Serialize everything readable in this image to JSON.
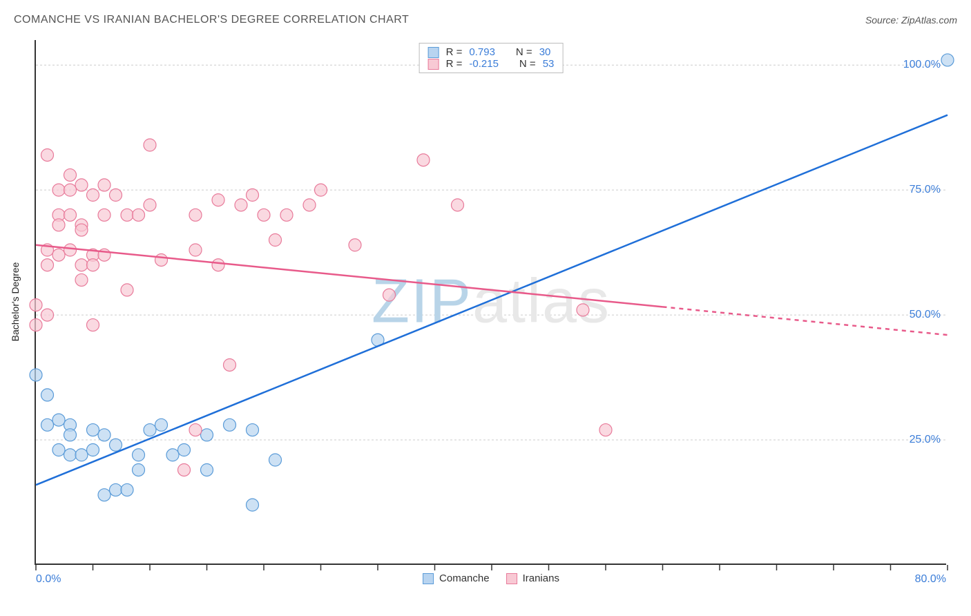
{
  "header": {
    "title": "COMANCHE VS IRANIAN BACHELOR'S DEGREE CORRELATION CHART",
    "source": "Source: ZipAtlas.com"
  },
  "watermark": {
    "text": "ZIPatlas",
    "color_strong": "#b8d4e8",
    "color_light": "#e8e8e8"
  },
  "chart": {
    "type": "scatter",
    "background_color": "#ffffff",
    "grid_color": "#cccccc",
    "axis_color": "#333333",
    "y_axis_label": "Bachelor's Degree",
    "xlim": [
      0,
      80
    ],
    "ylim": [
      0,
      105
    ],
    "x_tick_positions": [
      0,
      5,
      10,
      15,
      20,
      25,
      30,
      35,
      40,
      45,
      50,
      55,
      60,
      65,
      70,
      75,
      80
    ],
    "x_range_labels": [
      {
        "value": 0,
        "text": "0.0%"
      },
      {
        "value": 80,
        "text": "80.0%"
      }
    ],
    "y_ticks": [
      {
        "value": 25,
        "label": "25.0%"
      },
      {
        "value": 50,
        "label": "50.0%"
      },
      {
        "value": 75,
        "label": "75.0%"
      },
      {
        "value": 100,
        "label": "100.0%"
      }
    ],
    "y_tick_label_color": "#3b7dd8",
    "x_range_label_color": "#3b7dd8",
    "marker_radius": 9,
    "marker_stroke_width": 1.2,
    "trendline_width": 2.5,
    "series": [
      {
        "name": "Comanche",
        "fill_color": "#b8d4f0",
        "stroke_color": "#5a9bd8",
        "line_color": "#1f6fd8",
        "r_value": "0.793",
        "n_value": "30",
        "trend": {
          "x1": 0,
          "y1": 16,
          "x2": 80,
          "y2": 90,
          "extrapolate_from_x": null
        },
        "points": [
          [
            0,
            38
          ],
          [
            1,
            34
          ],
          [
            1,
            28
          ],
          [
            2,
            29
          ],
          [
            3,
            28
          ],
          [
            2,
            23
          ],
          [
            3,
            22
          ],
          [
            4,
            22
          ],
          [
            3,
            26
          ],
          [
            5,
            27
          ],
          [
            5,
            23
          ],
          [
            6,
            26
          ],
          [
            7,
            24
          ],
          [
            6,
            14
          ],
          [
            7,
            15
          ],
          [
            8,
            15
          ],
          [
            9,
            22
          ],
          [
            9,
            19
          ],
          [
            10,
            27
          ],
          [
            11,
            28
          ],
          [
            12,
            22
          ],
          [
            13,
            23
          ],
          [
            15,
            19
          ],
          [
            15,
            26
          ],
          [
            17,
            28
          ],
          [
            19,
            27
          ],
          [
            19,
            12
          ],
          [
            21,
            21
          ],
          [
            30,
            45
          ],
          [
            80,
            101
          ]
        ]
      },
      {
        "name": "Iranians",
        "fill_color": "#f8c9d4",
        "stroke_color": "#e87a9a",
        "line_color": "#e85a8a",
        "r_value": "-0.215",
        "n_value": "53",
        "trend": {
          "x1": 0,
          "y1": 64,
          "x2": 80,
          "y2": 46,
          "extrapolate_from_x": 55
        },
        "points": [
          [
            0,
            52
          ],
          [
            0,
            48
          ],
          [
            1,
            50
          ],
          [
            1,
            60
          ],
          [
            1,
            63
          ],
          [
            1,
            82
          ],
          [
            2,
            75
          ],
          [
            2,
            70
          ],
          [
            2,
            62
          ],
          [
            2,
            68
          ],
          [
            3,
            78
          ],
          [
            3,
            70
          ],
          [
            3,
            75
          ],
          [
            3,
            63
          ],
          [
            4,
            76
          ],
          [
            4,
            68
          ],
          [
            4,
            67
          ],
          [
            4,
            60
          ],
          [
            4,
            57
          ],
          [
            5,
            74
          ],
          [
            5,
            62
          ],
          [
            5,
            60
          ],
          [
            5,
            48
          ],
          [
            6,
            76
          ],
          [
            6,
            70
          ],
          [
            6,
            62
          ],
          [
            7,
            74
          ],
          [
            8,
            70
          ],
          [
            8,
            55
          ],
          [
            9,
            70
          ],
          [
            10,
            84
          ],
          [
            10,
            72
          ],
          [
            11,
            61
          ],
          [
            13,
            19
          ],
          [
            14,
            70
          ],
          [
            14,
            63
          ],
          [
            16,
            73
          ],
          [
            16,
            60
          ],
          [
            17,
            40
          ],
          [
            18,
            72
          ],
          [
            19,
            74
          ],
          [
            20,
            70
          ],
          [
            21,
            65
          ],
          [
            22,
            70
          ],
          [
            24,
            72
          ],
          [
            25,
            75
          ],
          [
            28,
            64
          ],
          [
            31,
            54
          ],
          [
            34,
            81
          ],
          [
            37,
            72
          ],
          [
            48,
            51
          ],
          [
            50,
            27
          ],
          [
            14,
            27
          ]
        ]
      }
    ],
    "legend_top": {
      "r_label": "R =",
      "n_label": "N =",
      "stat_color": "#3b7dd8"
    },
    "legend_bottom": {
      "comanche": "Comanche",
      "iranians": "Iranians"
    }
  }
}
